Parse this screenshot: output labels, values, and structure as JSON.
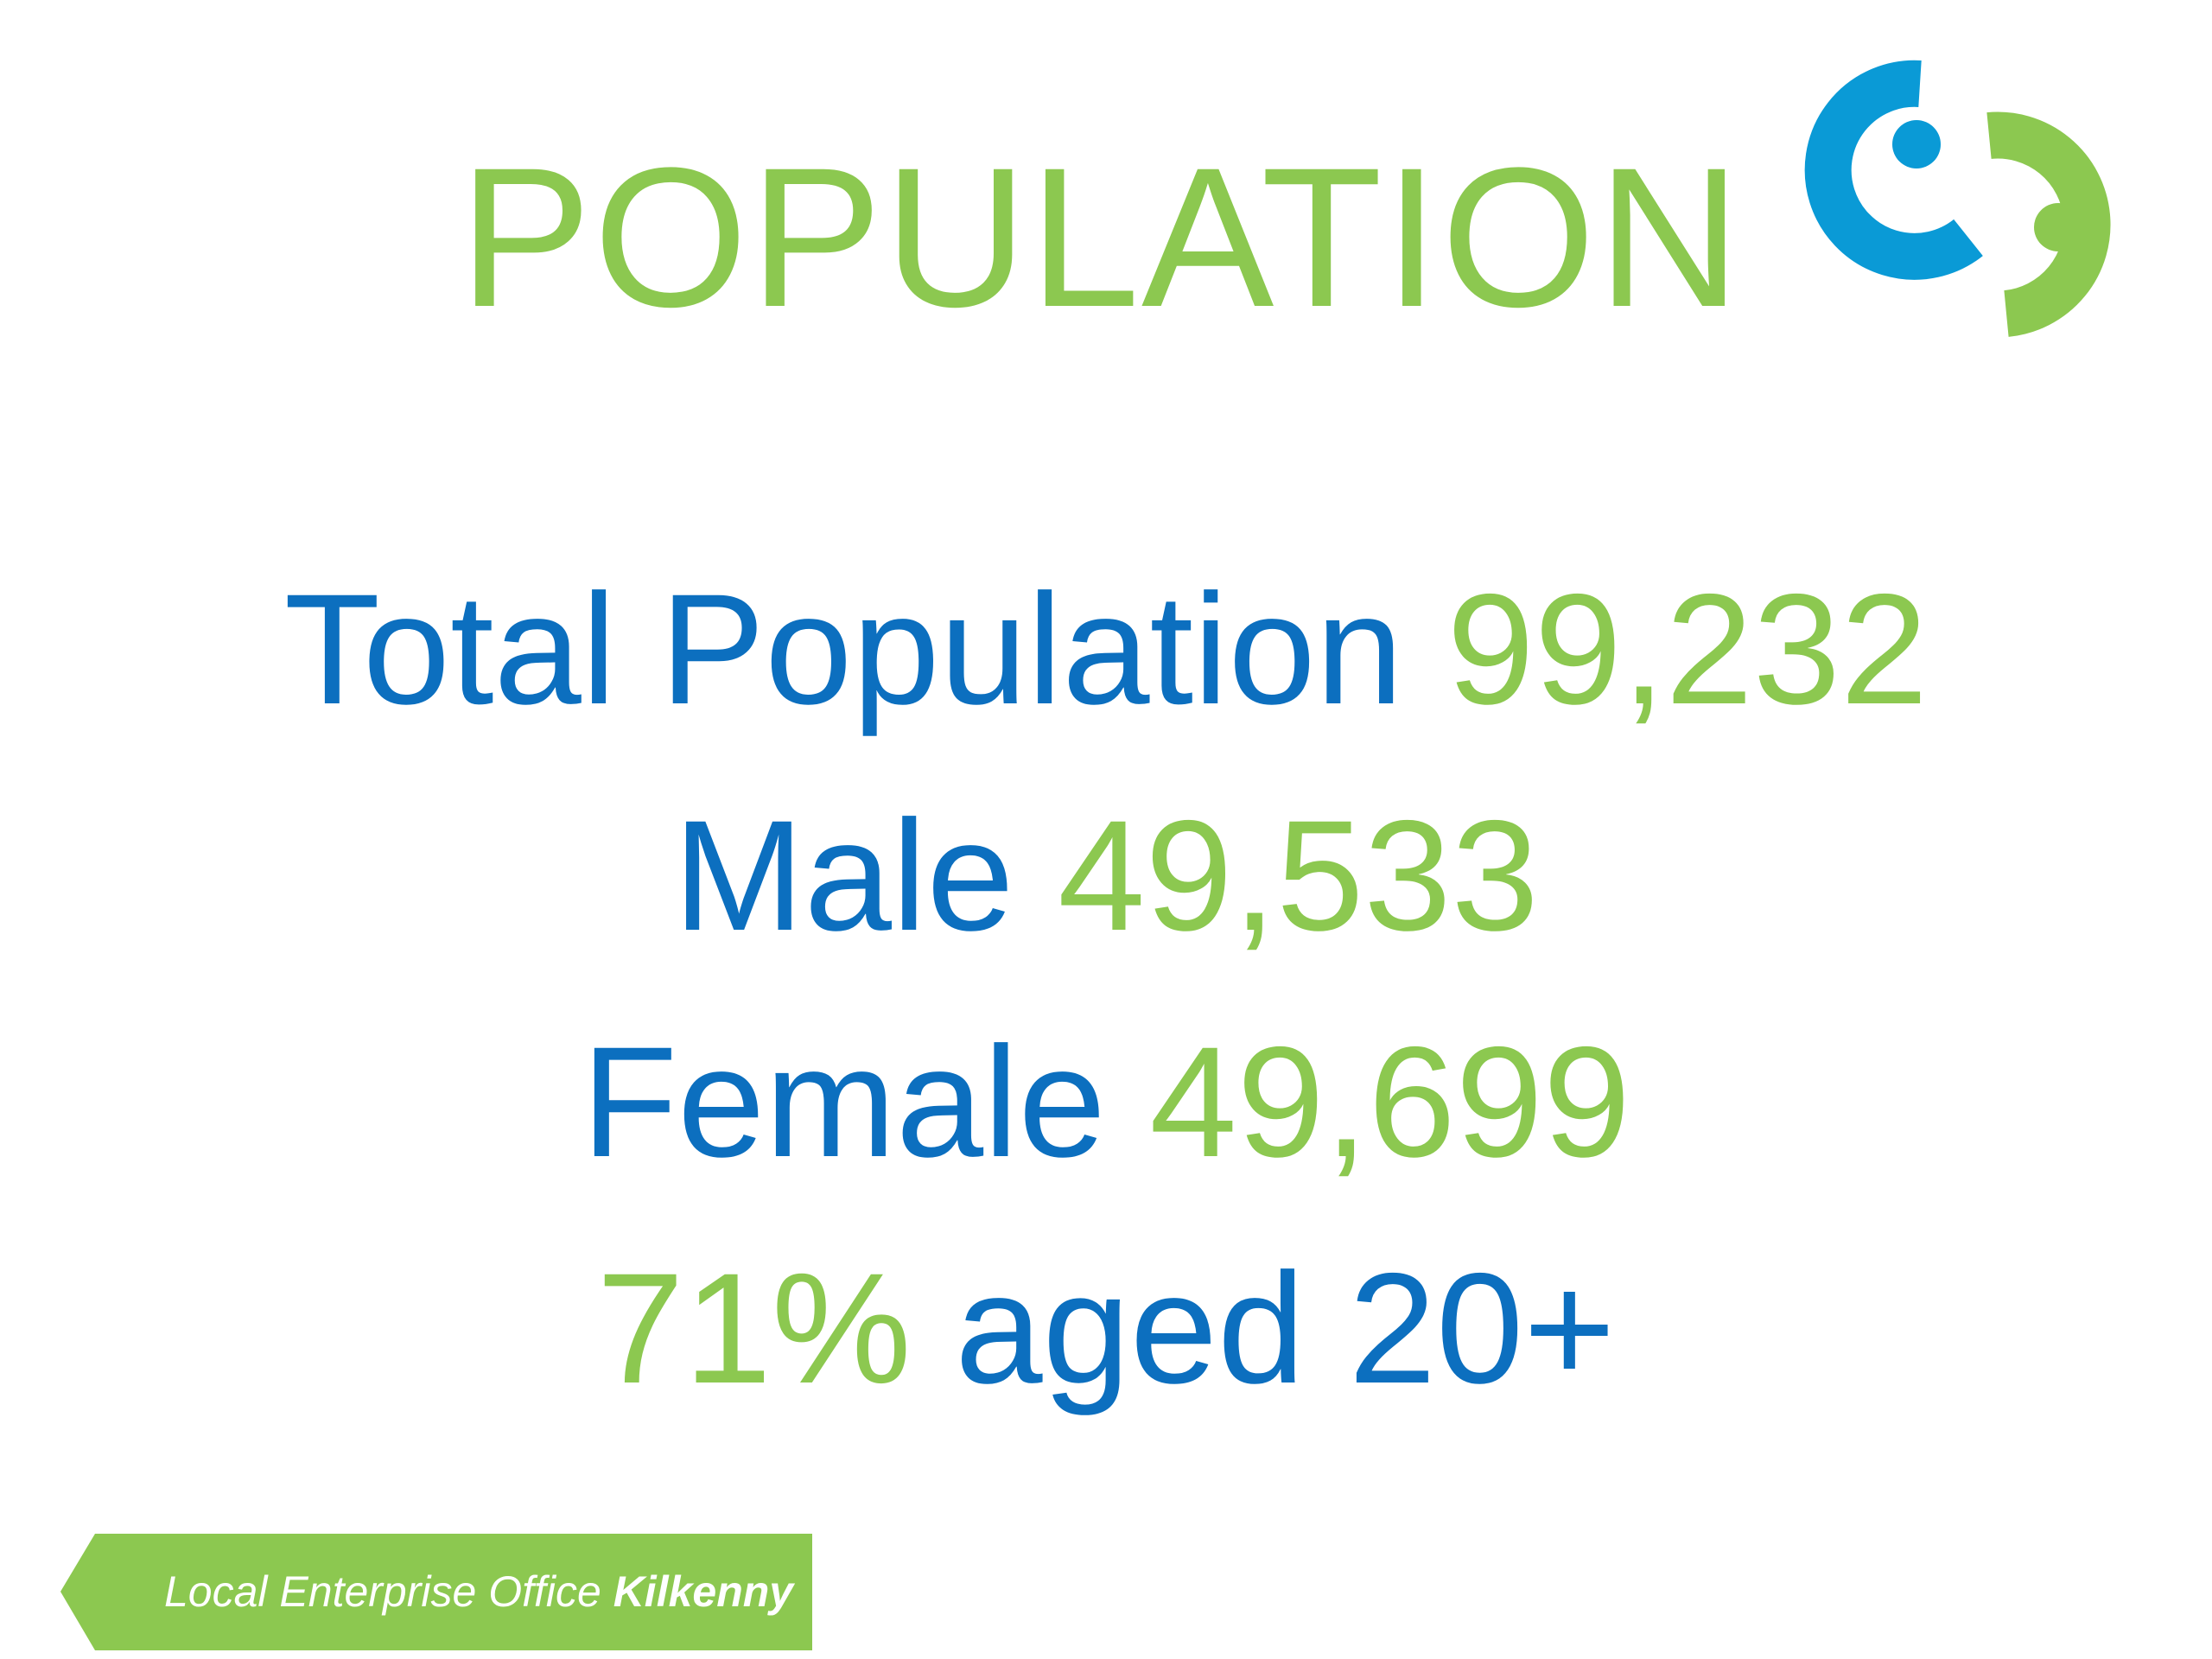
{
  "title": "POPULATION",
  "colors": {
    "accent_green": "#8cc850",
    "accent_blue": "#0c6fbf",
    "logo_blue": "#0a9ad6"
  },
  "logo": {
    "icon": "interlinked-rings-logo"
  },
  "stats": {
    "total_label": "Total Population",
    "total_value": "99,232",
    "male_label": "Male",
    "male_value": "49,533",
    "female_label": "Female",
    "female_value": "49,699",
    "aged_value": "71%",
    "aged_label": "aged 20+"
  },
  "footer": {
    "text_regular": "Local Enterprise Office ",
    "text_bold": "Kilkenny"
  }
}
